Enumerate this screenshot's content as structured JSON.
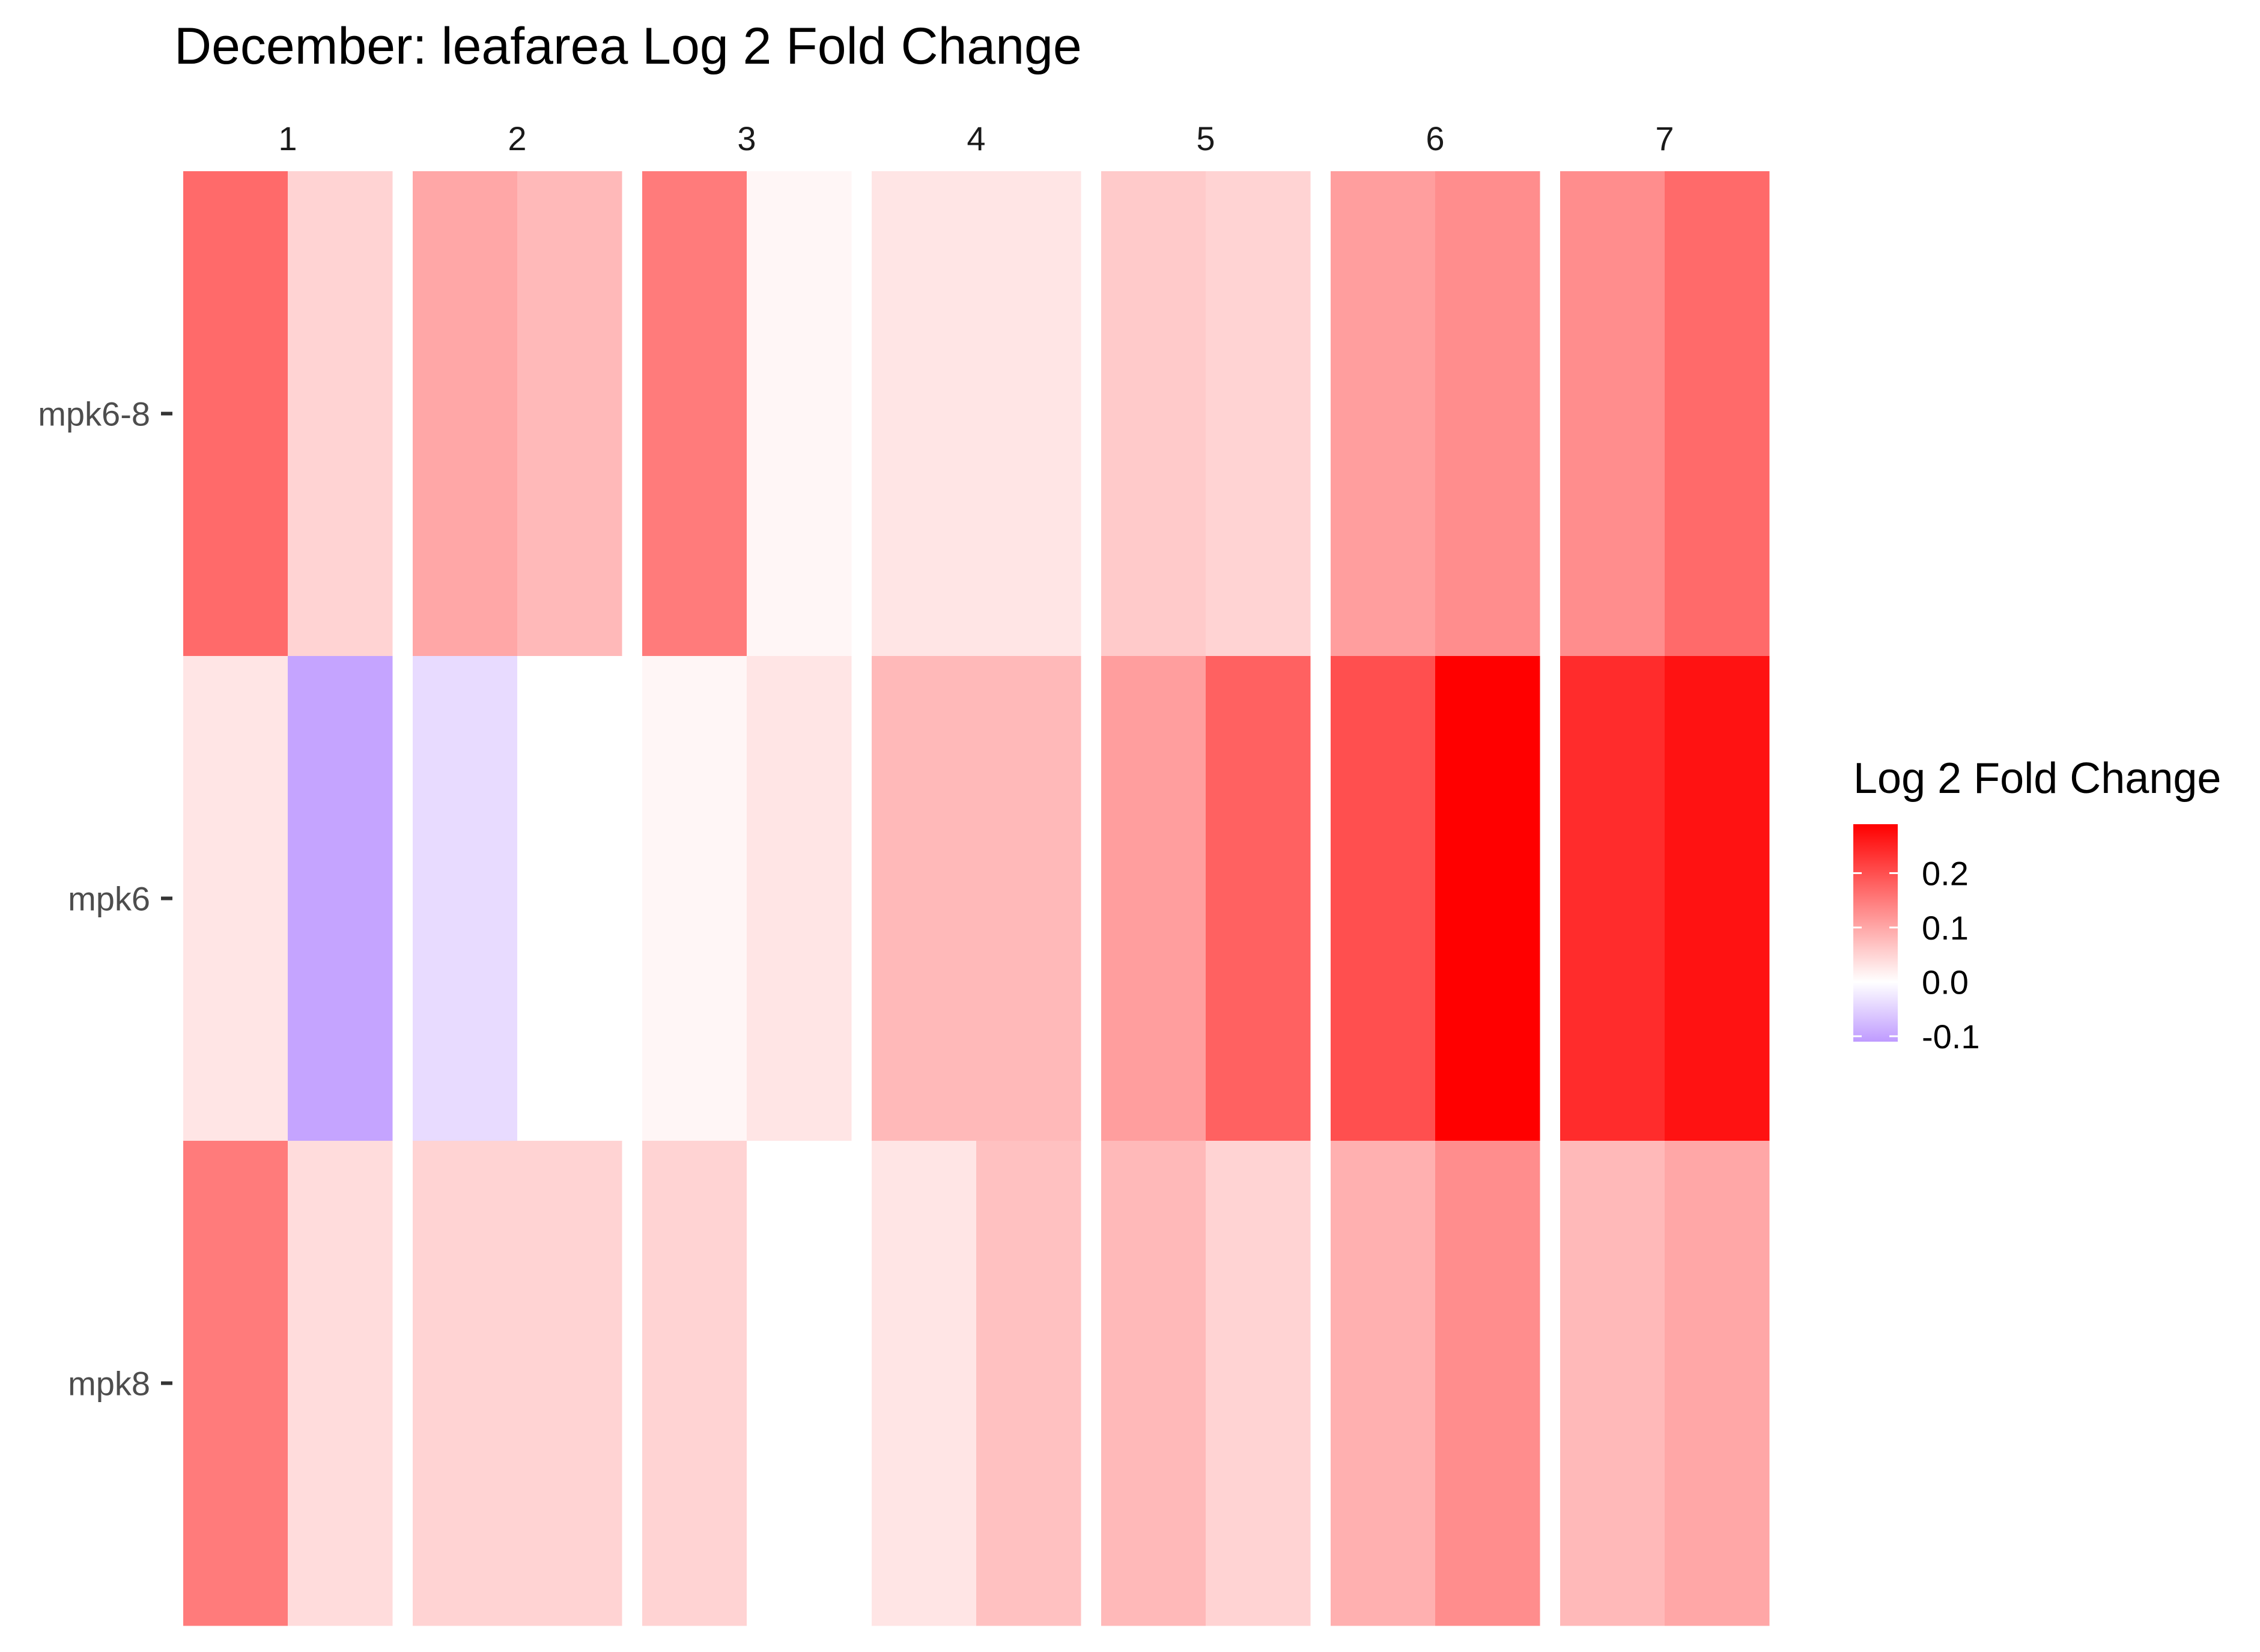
{
  "chart_data": {
    "type": "heatmap",
    "title": "December: leafarea Log 2 Fold Change",
    "facets": [
      "1",
      "2",
      "3",
      "4",
      "5",
      "6",
      "7"
    ],
    "rows": [
      "mpk6-8",
      "mpk6",
      "mpk8"
    ],
    "cells_per_facet": 2,
    "values": [
      [
        [
          0.17,
          0.05
        ],
        [
          0.1,
          0.08
        ],
        [
          0.15,
          0.01
        ],
        [
          0.03,
          0.03
        ],
        [
          0.06,
          0.05
        ],
        [
          0.11,
          0.13
        ],
        [
          0.13,
          0.17
        ]
      ],
      [
        [
          0.03,
          -0.1
        ],
        [
          -0.04,
          0.0
        ],
        [
          0.01,
          0.03
        ],
        [
          0.08,
          0.08
        ],
        [
          0.11,
          0.18
        ],
        [
          0.2,
          0.29
        ],
        [
          0.24,
          0.27
        ]
      ],
      [
        [
          0.15,
          0.04
        ],
        [
          0.05,
          0.05
        ],
        [
          0.05,
          0.0
        ],
        [
          0.03,
          0.07
        ],
        [
          0.08,
          0.05
        ],
        [
          0.09,
          0.13
        ],
        [
          0.08,
          0.1
        ]
      ]
    ],
    "legend": {
      "title": "Log 2 Fold Change",
      "position": "right",
      "breaks": [
        "0.2",
        "0.1",
        "0.0",
        "-0.1"
      ],
      "limits": [
        -0.11,
        0.29
      ],
      "low_color": "#bf9bff",
      "mid_color": "#ffffff",
      "high_color": "#ff0000"
    },
    "xlabel": "",
    "ylabel": ""
  }
}
